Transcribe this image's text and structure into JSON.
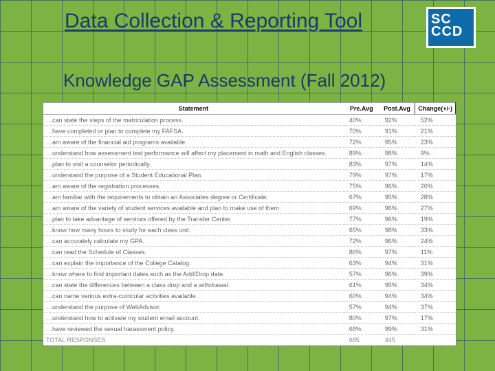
{
  "title": "Data Collection & Reporting Tool",
  "subtitle": "Knowledge GAP Assessment (Fall 2012)",
  "logo_text": "SC\nCCD",
  "colors": {
    "background": "#7cb342",
    "grid_line": "#1e4678",
    "title_color": "#1a3a6e",
    "logo_bg": "#0e6ba8",
    "table_bg": "#ffffff"
  },
  "table": {
    "columns": [
      "Statement",
      "Pre.Avg",
      "Post.Avg",
      "Change(+/-)"
    ],
    "rows": [
      [
        "…can state the steps of the matriculation process.",
        "40%",
        "92%",
        "52%"
      ],
      [
        "…have completed or plan to complete my FAFSA.",
        "70%",
        "91%",
        "21%"
      ],
      [
        "…am aware of the financial aid programs available.",
        "72%",
        "95%",
        "23%"
      ],
      [
        "…understand how assessment test performance will affect my placement in math and English classes.",
        "89%",
        "98%",
        "9%"
      ],
      [
        "…plan to visit a counselor periodically.",
        "83%",
        "97%",
        "14%"
      ],
      [
        "…understand the purpose of a Student Educational Plan.",
        "79%",
        "97%",
        "17%"
      ],
      [
        "…am aware of the registration processes.",
        "75%",
        "96%",
        "20%"
      ],
      [
        "…am familiar with the requirements to obtain an Associates degree or Certificate.",
        "67%",
        "95%",
        "28%"
      ],
      [
        "…am aware of the variety of student services available and plan to make use of them.",
        "69%",
        "96%",
        "27%"
      ],
      [
        "…plan to take advantage of services offered by the Transfer Center.",
        "77%",
        "96%",
        "19%"
      ],
      [
        "…know how many hours to study for each class unit.",
        "65%",
        "98%",
        "33%"
      ],
      [
        "…can accurately calculate my GPA.",
        "72%",
        "96%",
        "24%"
      ],
      [
        "…can read the Schedule of Classes.",
        "86%",
        "97%",
        "11%"
      ],
      [
        "…can explain the importance of the College Catalog.",
        "63%",
        "94%",
        "31%"
      ],
      [
        "…know where to find important dates such as the Add/Drop date.",
        "57%",
        "96%",
        "39%"
      ],
      [
        "…can state the differences between a class drop and a withdrawal.",
        "61%",
        "95%",
        "34%"
      ],
      [
        "…can name various extra-curricular activities available.",
        "60%",
        "94%",
        "34%"
      ],
      [
        "…understand the purpose of WebAdvisor.",
        "57%",
        "94%",
        "37%"
      ],
      [
        "…understand how to activate my student email account.",
        "80%",
        "97%",
        "17%"
      ],
      [
        "…have reviewed the sexual harassment policy.",
        "68%",
        "99%",
        "31%"
      ],
      [
        "TOTAL RESPONSES",
        "685",
        "445",
        ""
      ]
    ]
  }
}
